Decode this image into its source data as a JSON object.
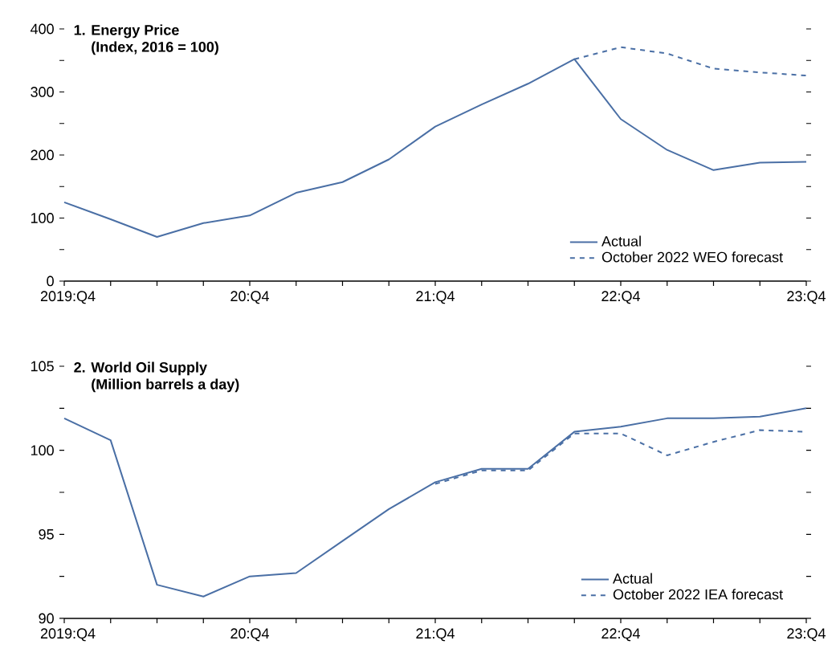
{
  "chart_data": [
    {
      "type": "line",
      "title": "1. Energy Price",
      "subtitle": "(Index, 2016 = 100)",
      "categories": [
        "2019:Q4",
        null,
        null,
        null,
        "20:Q4",
        null,
        null,
        null,
        "21:Q4",
        null,
        null,
        null,
        "22:Q4",
        null,
        null,
        null,
        "23:Q4"
      ],
      "ylim": [
        0,
        400
      ],
      "yticks": [
        0,
        {
          "value": 50,
          "label": null
        },
        100,
        {
          "value": 150,
          "label": null
        },
        200,
        {
          "value": 250,
          "label": null
        },
        300,
        {
          "value": 350,
          "label": null
        },
        400
      ],
      "legend": "bottom right",
      "series": [
        {
          "name": "Actual",
          "color": "#4a6fa5",
          "line_style": "solid",
          "values": [
            125,
            98,
            70,
            92,
            104,
            140,
            157,
            193,
            245,
            280,
            313,
            352,
            257,
            208,
            176,
            188,
            189
          ]
        },
        {
          "name": "October 2022 WEO forecast",
          "color": "#4a6fa5",
          "line_style": "dashed",
          "values": [
            null,
            null,
            null,
            null,
            null,
            null,
            null,
            null,
            null,
            null,
            null,
            352,
            371,
            361,
            337,
            331,
            326
          ]
        }
      ]
    },
    {
      "type": "line",
      "title": "2. World Oil Supply",
      "subtitle": "(Million barrels a day)",
      "categories": [
        "2019:Q4",
        null,
        null,
        null,
        "20:Q4",
        null,
        null,
        null,
        "21:Q4",
        null,
        null,
        null,
        "22:Q4",
        null,
        null,
        null,
        "23:Q4"
      ],
      "ylim": [
        90,
        105
      ],
      "yticks": [
        90,
        {
          "value": 92.5,
          "label": null
        },
        95,
        {
          "value": 97.5,
          "label": null
        },
        100,
        {
          "value": 102.5,
          "label": null
        },
        105
      ],
      "legend": "bottom right",
      "series": [
        {
          "name": "Actual",
          "color": "#4a6fa5",
          "line_style": "solid",
          "values": [
            101.9,
            100.6,
            92.0,
            91.3,
            92.5,
            92.7,
            94.6,
            96.5,
            98.1,
            98.9,
            98.9,
            101.1,
            101.4,
            101.9,
            101.9,
            102.0,
            102.5
          ]
        },
        {
          "name": "October 2022 IEA forecast",
          "color": "#4a6fa5",
          "line_style": "dashed",
          "values": [
            null,
            null,
            null,
            null,
            null,
            null,
            null,
            null,
            98.0,
            98.8,
            98.8,
            101.0,
            101.0,
            99.7,
            100.5,
            101.2,
            101.1
          ]
        }
      ]
    }
  ]
}
